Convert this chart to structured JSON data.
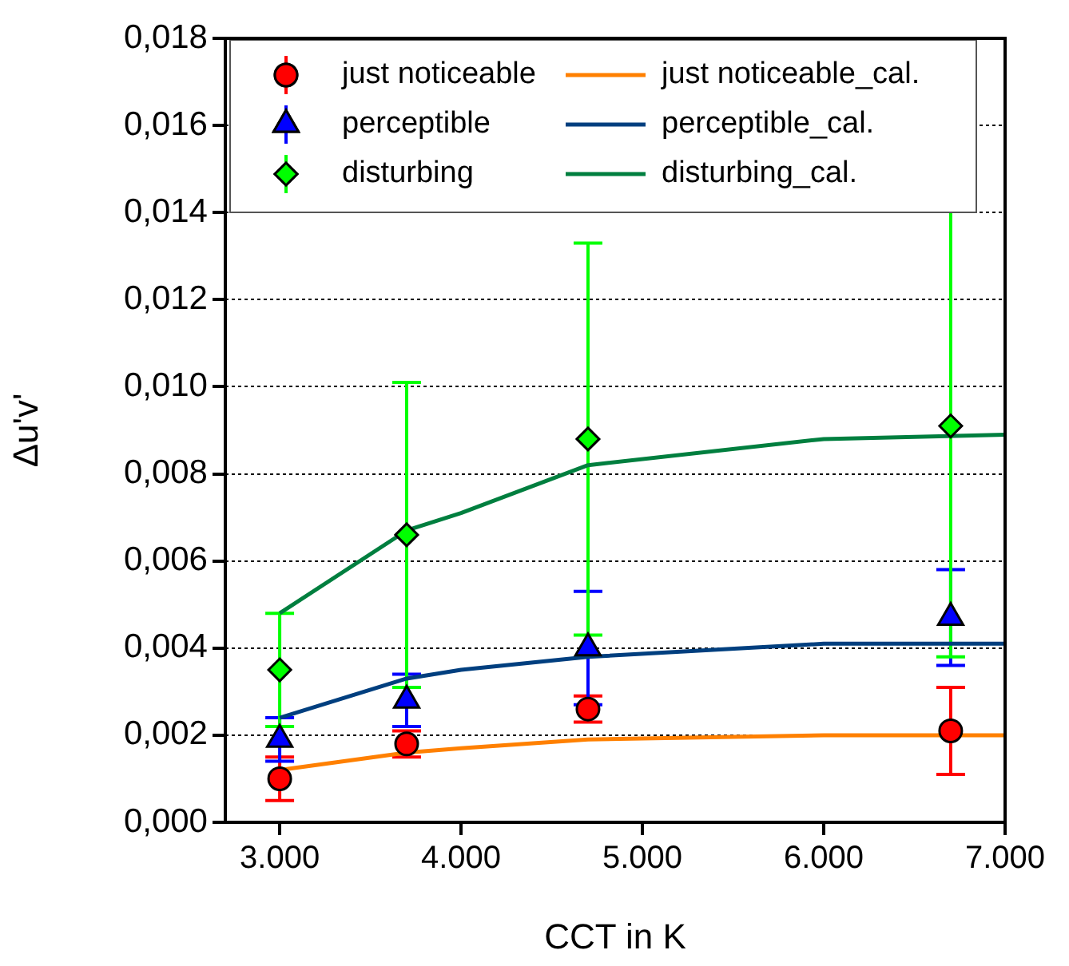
{
  "chart_data": {
    "type": "scatter",
    "xlabel": "CCT in K",
    "ylabel": "Δu'v'",
    "xlim": [
      2700,
      7000
    ],
    "xticks": [
      {
        "value": 3000,
        "label": "3.000"
      },
      {
        "value": 4000,
        "label": "4.000"
      },
      {
        "value": 5000,
        "label": "5.000"
      },
      {
        "value": 6000,
        "label": "6.000"
      },
      {
        "value": 7000,
        "label": "7.000"
      }
    ],
    "ylim": [
      0,
      0.018
    ],
    "yticks": [
      {
        "value": 0,
        "label": "0,000"
      },
      {
        "value": 0.002,
        "label": "0,002"
      },
      {
        "value": 0.004,
        "label": "0,004"
      },
      {
        "value": 0.006,
        "label": "0,006"
      },
      {
        "value": 0.008,
        "label": "0,008"
      },
      {
        "value": 0.01,
        "label": "0,010"
      },
      {
        "value": 0.012,
        "label": "0,012"
      },
      {
        "value": 0.014,
        "label": "0,014"
      },
      {
        "value": 0.016,
        "label": "0,016"
      },
      {
        "value": 0.018,
        "label": "0,018"
      }
    ],
    "grid": "y",
    "legend": "top",
    "series": [
      {
        "name": "just noticeable",
        "marker": "circle",
        "color": "#ff0000",
        "x": [
          3000,
          3700,
          4700,
          6700
        ],
        "values": [
          0.001,
          0.0018,
          0.0026,
          0.0021
        ],
        "errors": [
          0.0005,
          0.0003,
          0.0003,
          0.001
        ]
      },
      {
        "name": "perceptible",
        "marker": "triangle",
        "color": "#0000ff",
        "x": [
          3000,
          3700,
          4700,
          6700
        ],
        "values": [
          0.0019,
          0.0028,
          0.004,
          0.0047
        ],
        "errors": [
          0.0005,
          0.0006,
          0.0013,
          0.0011
        ]
      },
      {
        "name": "disturbing",
        "marker": "diamond",
        "color": "#00ff00",
        "x": [
          3000,
          3700,
          4700,
          6700
        ],
        "values": [
          0.0035,
          0.0066,
          0.0088,
          0.0091
        ],
        "errors": [
          0.0013,
          0.0035,
          0.0045,
          0.0053
        ]
      },
      {
        "name": "just noticeable_cal.",
        "type": "line",
        "marker": "none",
        "color": "#ff8000",
        "x": [
          3000,
          3700,
          4000,
          4700,
          6000,
          7000
        ],
        "values": [
          0.0012,
          0.0016,
          0.0017,
          0.0019,
          0.002,
          0.002
        ]
      },
      {
        "name": "perceptible_cal.",
        "type": "line",
        "marker": "none",
        "color": "#003f7f",
        "x": [
          3000,
          3700,
          4000,
          4700,
          6000,
          7000
        ],
        "values": [
          0.0024,
          0.0033,
          0.0035,
          0.0038,
          0.0041,
          0.0041
        ]
      },
      {
        "name": "disturbing_cal.",
        "type": "line",
        "marker": "none",
        "color": "#007f3f",
        "x": [
          3000,
          3700,
          4000,
          4700,
          6000,
          7000
        ],
        "values": [
          0.0048,
          0.0067,
          0.0071,
          0.0082,
          0.0088,
          0.0089
        ]
      }
    ]
  }
}
